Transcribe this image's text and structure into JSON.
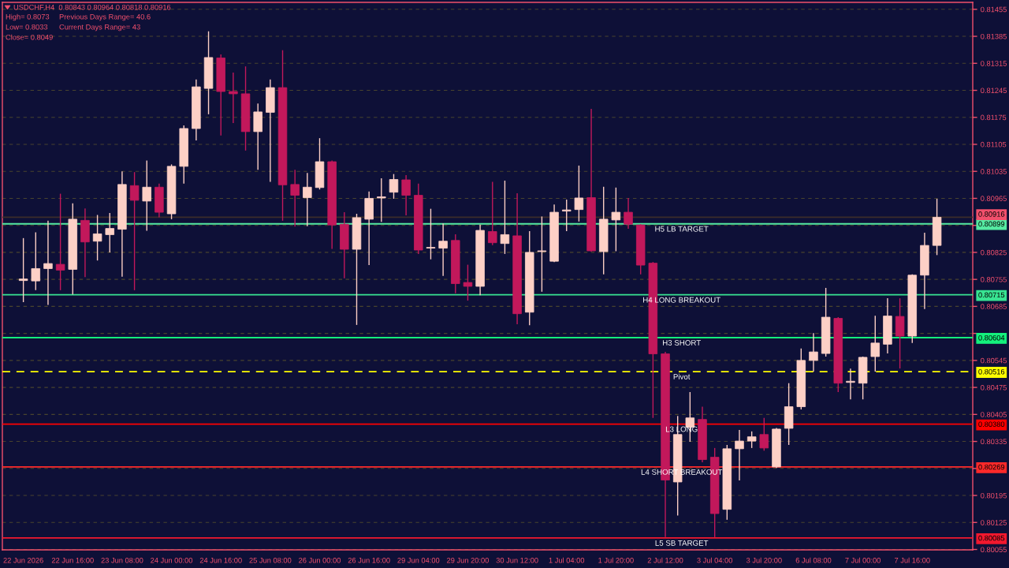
{
  "chart_data": {
    "type": "candlestick",
    "title": "USDCHF,H4  0.80843 0.80964 0.80818 0.80916",
    "categories": [
      "22 Jun 2026",
      null,
      null,
      null,
      "22 Jun 16:00",
      null,
      null,
      null,
      "23 Jun 08:00",
      null,
      null,
      null,
      "24 Jun 00:00",
      null,
      null,
      null,
      "24 Jun 16:00",
      null,
      null,
      null,
      "25 Jun 08:00",
      null,
      null,
      null,
      "26 Jun 00:00",
      null,
      null,
      null,
      "26 Jun 16:00",
      null,
      null,
      null,
      "29 Jun 04:00",
      null,
      null,
      null,
      "29 Jun 20:00",
      null,
      null,
      null,
      "30 Jun 12:00",
      null,
      null,
      null,
      "1 Jul 04:00",
      null,
      null,
      null,
      "1 Jul 20:00",
      null,
      null,
      null,
      "2 Jul 12:00",
      null,
      null,
      null,
      "3 Jul 04:00",
      null,
      null,
      null,
      "3 Jul 20:00",
      null,
      null,
      null,
      "6 Jul 08:00",
      null,
      null,
      null,
      "7 Jul 00:00",
      null,
      null,
      null,
      "7 Jul 16:00",
      null,
      null
    ],
    "ohlc": [
      [
        0.80752,
        0.80862,
        0.80696,
        0.80756
      ],
      [
        0.80751,
        0.80877,
        0.80727,
        0.80783
      ],
      [
        0.80783,
        0.80907,
        0.80689,
        0.80796
      ],
      [
        0.80794,
        0.80977,
        0.80727,
        0.80779
      ],
      [
        0.80781,
        0.80952,
        0.80716,
        0.80911
      ],
      [
        0.80908,
        0.80939,
        0.80761,
        0.80852
      ],
      [
        0.80854,
        0.80922,
        0.80804,
        0.80873
      ],
      [
        0.80871,
        0.80927,
        0.80825,
        0.80887
      ],
      [
        0.80885,
        0.81035,
        0.80762,
        0.81001
      ],
      [
        0.80998,
        0.81033,
        0.80727,
        0.8096
      ],
      [
        0.80958,
        0.81063,
        0.80881,
        0.80994
      ],
      [
        0.80994,
        0.81003,
        0.80916,
        0.80929
      ],
      [
        0.80925,
        0.81053,
        0.80911,
        0.81048
      ],
      [
        0.81048,
        0.81154,
        0.81003,
        0.81146
      ],
      [
        0.81146,
        0.81273,
        0.81115,
        0.81254
      ],
      [
        0.8125,
        0.81398,
        0.81183,
        0.8133
      ],
      [
        0.81329,
        0.81338,
        0.81128,
        0.81242
      ],
      [
        0.81242,
        0.81291,
        0.8116,
        0.81236
      ],
      [
        0.81236,
        0.81307,
        0.81089,
        0.81138
      ],
      [
        0.81138,
        0.81211,
        0.81039,
        0.81189
      ],
      [
        0.81188,
        0.81273,
        0.81008,
        0.81252
      ],
      [
        0.81252,
        0.81349,
        0.80907,
        0.81
      ],
      [
        0.81001,
        0.81039,
        0.80892,
        0.80973
      ],
      [
        0.80967,
        0.81031,
        0.80893,
        0.80994
      ],
      [
        0.80993,
        0.81121,
        0.80988,
        0.8106
      ],
      [
        0.8106,
        0.81063,
        0.80834,
        0.80896
      ],
      [
        0.80898,
        0.80929,
        0.80758,
        0.80833
      ],
      [
        0.80833,
        0.80925,
        0.80637,
        0.80915
      ],
      [
        0.80911,
        0.80983,
        0.80792,
        0.80965
      ],
      [
        0.80966,
        0.81017,
        0.80904,
        0.80969
      ],
      [
        0.80981,
        0.81028,
        0.80964,
        0.81014
      ],
      [
        0.81013,
        0.81025,
        0.80921,
        0.80973
      ],
      [
        0.80973,
        0.81003,
        0.80821,
        0.80831
      ],
      [
        0.80836,
        0.80938,
        0.80807,
        0.80838
      ],
      [
        0.80836,
        0.809,
        0.80764,
        0.80854
      ],
      [
        0.80856,
        0.80872,
        0.80719,
        0.80744
      ],
      [
        0.80747,
        0.80793,
        0.807,
        0.80737
      ],
      [
        0.80737,
        0.80897,
        0.80714,
        0.80882
      ],
      [
        0.80879,
        0.81008,
        0.80844,
        0.8085
      ],
      [
        0.80848,
        0.81011,
        0.80821,
        0.80871
      ],
      [
        0.80868,
        0.80978,
        0.80639,
        0.80666
      ],
      [
        0.8067,
        0.8088,
        0.80636,
        0.80825
      ],
      [
        0.80827,
        0.80918,
        0.80723,
        0.80829
      ],
      [
        0.80802,
        0.80949,
        0.808,
        0.80929
      ],
      [
        0.80932,
        0.80962,
        0.8088,
        0.80935
      ],
      [
        0.80936,
        0.8105,
        0.80905,
        0.80966
      ],
      [
        0.80967,
        0.81197,
        0.80827,
        0.80829
      ],
      [
        0.80827,
        0.80995,
        0.80768,
        0.80911
      ],
      [
        0.80909,
        0.80993,
        0.80828,
        0.80929
      ],
      [
        0.80929,
        0.80966,
        0.80886,
        0.80898
      ],
      [
        0.80896,
        0.80898,
        0.80768,
        0.80792
      ],
      [
        0.80797,
        0.808,
        0.80396,
        0.80562
      ],
      [
        0.80562,
        0.80567,
        0.80087,
        0.80235
      ],
      [
        0.8023,
        0.80401,
        0.80143,
        0.80353
      ],
      [
        0.80372,
        0.80463,
        0.80334,
        0.80396
      ],
      [
        0.80392,
        0.80425,
        0.80281,
        0.80288
      ],
      [
        0.80294,
        0.80318,
        0.80087,
        0.80148
      ],
      [
        0.80159,
        0.80326,
        0.80132,
        0.80316
      ],
      [
        0.80316,
        0.80365,
        0.80234,
        0.80336
      ],
      [
        0.80336,
        0.80361,
        0.80318,
        0.80347
      ],
      [
        0.80353,
        0.80396,
        0.80311,
        0.80318
      ],
      [
        0.80269,
        0.8037,
        0.80266,
        0.80367
      ],
      [
        0.80369,
        0.80486,
        0.80326,
        0.80425
      ],
      [
        0.80425,
        0.80576,
        0.80418,
        0.80545
      ],
      [
        0.80545,
        0.80616,
        0.80516,
        0.80567
      ],
      [
        0.80563,
        0.80733,
        0.80555,
        0.80657
      ],
      [
        0.80654,
        0.80657,
        0.80463,
        0.80486
      ],
      [
        0.80488,
        0.80524,
        0.80444,
        0.80491
      ],
      [
        0.80486,
        0.80555,
        0.80444,
        0.80553
      ],
      [
        0.80555,
        0.80661,
        0.80516,
        0.8059
      ],
      [
        0.80587,
        0.80706,
        0.80563,
        0.8066
      ],
      [
        0.80659,
        0.80706,
        0.80524,
        0.80608
      ],
      [
        0.80608,
        0.80768,
        0.8059,
        0.80766
      ],
      [
        0.80766,
        0.80876,
        0.80678,
        0.80843
      ],
      [
        0.80843,
        0.80964,
        0.80818,
        0.80916
      ]
    ],
    "colors": [
      "#fdd0c6",
      "#fdd0c6",
      "#fdd0c6",
      "#c2185b",
      "#fdd0c6",
      "#c2185b",
      "#fdd0c6",
      "#fdd0c6",
      "#fdd0c6",
      "#c2185b",
      "#fdd0c6",
      "#c2185b",
      "#fdd0c6",
      "#fdd0c6",
      "#fdd0c6",
      "#fdd0c6",
      "#c2185b",
      "#c2185b",
      "#c2185b",
      "#fdd0c6",
      "#fdd0c6",
      "#c2185b",
      "#c2185b",
      "#fdd0c6",
      "#fdd0c6",
      "#c2185b",
      "#c2185b",
      "#fdd0c6",
      "#fdd0c6",
      "#fdd0c6",
      "#fdd0c6",
      "#c2185b",
      "#c2185b",
      "#fdd0c6",
      "#fdd0c6",
      "#c2185b",
      "#c2185b",
      "#fdd0c6",
      "#c2185b",
      "#fdd0c6",
      "#c2185b",
      "#fdd0c6",
      "#fdd0c6",
      "#fdd0c6",
      "#fdd0c6",
      "#fdd0c6",
      "#c2185b",
      "#fdd0c6",
      "#fdd0c6",
      "#c2185b",
      "#c2185b",
      "#c2185b",
      "#c2185b",
      "#fdd0c6",
      "#fdd0c6",
      "#c2185b",
      "#c2185b",
      "#fdd0c6",
      "#fdd0c6",
      "#fdd0c6",
      "#c2185b",
      "#fdd0c6",
      "#fdd0c6",
      "#fdd0c6",
      "#fdd0c6",
      "#fdd0c6",
      "#c2185b",
      "#fdd0c6",
      "#fdd0c6",
      "#fdd0c6",
      "#fdd0c6",
      "#c2185b",
      "#fdd0c6",
      "#fdd0c6",
      "#fdd0c6"
    ],
    "ylim": [
      0.80054,
      0.81473
    ],
    "yticks": [
      0.80055,
      0.80125,
      0.80195,
      {
        "value": 0.80265,
        "label": null
      },
      0.80335,
      0.80405,
      0.80475,
      0.80545,
      {
        "value": 0.80615,
        "label": null
      },
      0.80685,
      0.80755,
      0.80825,
      {
        "value": 0.80895,
        "label": null
      },
      0.80965,
      0.81035,
      0.81105,
      0.81175,
      0.81245,
      0.81315,
      0.81385,
      0.81455
    ],
    "y2lim": [
      0.80054,
      0.81473
    ],
    "y2ticks": [
      0.80085,
      0.80269,
      {
        "value": 0.8038,
        "label": "0.80380"
      },
      0.80516,
      0.80604,
      0.80715,
      0.80899,
      0.80916
    ],
    "grid": true,
    "ref_lines": [
      {
        "axis": "y",
        "value": 0.80899,
        "label": "H5 LB TARGET",
        "color": "#55eaa2"
      },
      {
        "axis": "y",
        "value": 0.80715,
        "label": "H4 LONG BREAKOUT",
        "color": "#38e492"
      },
      {
        "axis": "y",
        "value": 0.80604,
        "label": "H3 SHORT",
        "color": "#14f07c"
      },
      {
        "axis": "y",
        "value": 0.80516,
        "label": "Pivot",
        "color": "#ffff00",
        "line_style": "dashed"
      },
      {
        "axis": "y",
        "value": 0.8038,
        "label": "L3 LONG",
        "color": "#ff0000"
      },
      {
        "axis": "y",
        "value": 0.80269,
        "label": "L4 SHORT BREAKOUT",
        "color": "#ff2a2a"
      },
      {
        "axis": "y",
        "value": 0.80085,
        "label": "L5 SB TARGET",
        "color": "#f2182e"
      },
      {
        "axis": "y",
        "value": 0.80916,
        "color": "#3b2c2a"
      }
    ],
    "annotations": [
      "High= 0.8073",
      "Previous Days Range= 40.6",
      "Low= 0.8033",
      "Current Days Range= 43",
      "Close= 0.8049"
    ]
  }
}
